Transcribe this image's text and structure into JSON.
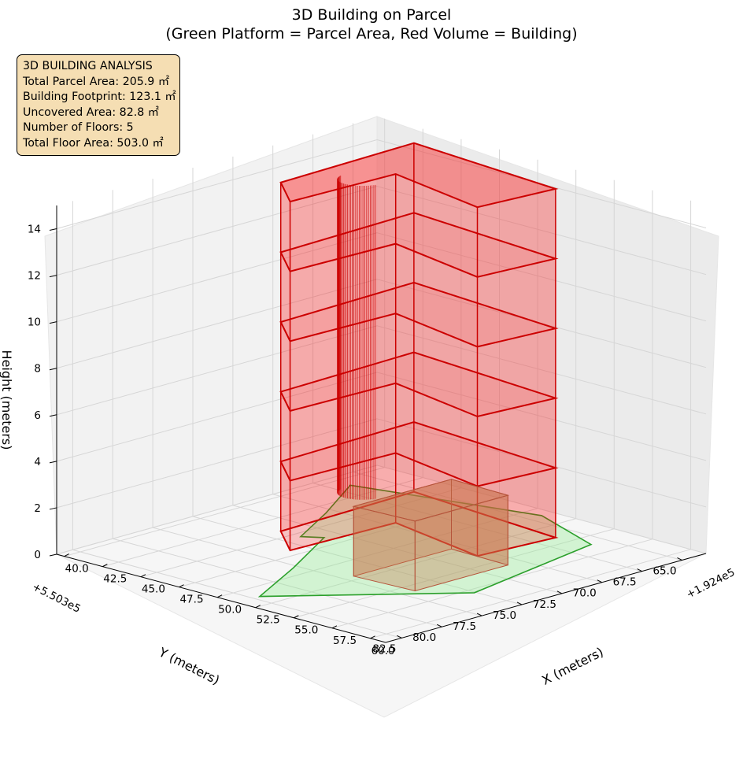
{
  "title": {
    "line1": "3D Building on Parcel",
    "line2": "(Green Platform = Parcel Area, Red Volume = Building)"
  },
  "info_box": {
    "heading": "3D BUILDING ANALYSIS",
    "lines": [
      "Total Parcel Area: 205.9 ㎡",
      "Building Footprint: 123.1 ㎡",
      "Uncovered Area: 82.8 ㎡",
      "Number of Floors: 5",
      "Total Floor Area: 503.0 ㎡"
    ],
    "background": "#f5deb3"
  },
  "chart_data": {
    "type": "3d-extruded-polygon",
    "axes": {
      "x": {
        "label": "X (meters)",
        "offset_label": "+1.924e5",
        "ticks": [
          "40.0",
          "42.5",
          "45.0",
          "47.5",
          "50.0",
          "52.5",
          "55.0",
          "57.5",
          "60.0"
        ],
        "range": [
          39.5,
          61.0
        ]
      },
      "y": {
        "label": "Y (meters)",
        "offset_label": "+5.503e5",
        "ticks": [
          "65.0",
          "67.5",
          "70.0",
          "72.5",
          "75.0",
          "77.5",
          "80.0",
          "82.5"
        ],
        "range": [
          63.5,
          83.5
        ]
      },
      "z": {
        "label": "Height (meters)",
        "ticks": [
          "0",
          "2",
          "4",
          "6",
          "8",
          "10",
          "12",
          "14"
        ],
        "range": [
          0,
          15
        ]
      }
    },
    "grid": true,
    "parcel": {
      "name": "Parcel Area",
      "color": "#2ca02c",
      "fill": "#90ee90",
      "footprint": [
        [
          41.0,
          66.6
        ],
        [
          43.5,
          70.5
        ],
        [
          45.5,
          74.0
        ],
        [
          46.4,
          73.4
        ],
        [
          49.0,
          77.8
        ],
        [
          51.3,
          82.1
        ],
        [
          58.0,
          75.1
        ],
        [
          56.1,
          66.0
        ],
        [
          51.0,
          64.2
        ],
        [
          41.0,
          66.6
        ]
      ]
    },
    "building": {
      "name": "Building",
      "color": "#ff0000",
      "edge_color": "#cc0000",
      "floors": 5,
      "floor_height": 3.0,
      "total_height": 15.0,
      "footprint": [
        [
          43.9,
          65.4
        ],
        [
          44.2,
          74.0
        ],
        [
          46.8,
          75.9
        ],
        [
          47.0,
          69.5
        ],
        [
          53.7,
          70.8
        ],
        [
          54.1,
          66.3
        ],
        [
          43.9,
          65.4
        ]
      ],
      "curve_column": {
        "center": [
          46.5,
          71.0
        ],
        "radius": 1.2
      },
      "ground_block": {
        "color": "#c8744a",
        "footprint": [
          [
            52.0,
            70.8
          ],
          [
            52.0,
            76.9
          ],
          [
            55.8,
            76.7
          ],
          [
            55.8,
            70.9
          ],
          [
            52.0,
            70.8
          ]
        ],
        "height": 3.0
      }
    }
  }
}
